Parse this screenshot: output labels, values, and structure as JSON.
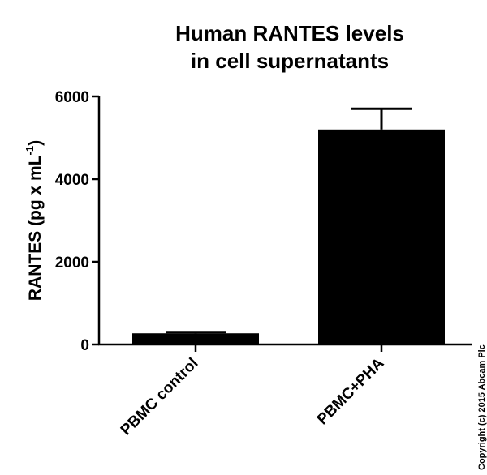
{
  "chart_data": {
    "type": "bar",
    "title": [
      "Human RANTES levels",
      "in cell supernatants"
    ],
    "ylabel": {
      "text": "RANTES (pg x mL",
      "superscript": "-1",
      "suffix": ")"
    },
    "categories": [
      "PBMC control",
      "PBMC+PHA"
    ],
    "values": [
      270,
      5200
    ],
    "errors": [
      30,
      500
    ],
    "color": "#000000",
    "ylim": [
      0,
      6000
    ],
    "yticks": [
      0,
      2000,
      4000,
      6000
    ],
    "copyright": "Copyright (c) 2015 Abcam Plc"
  }
}
